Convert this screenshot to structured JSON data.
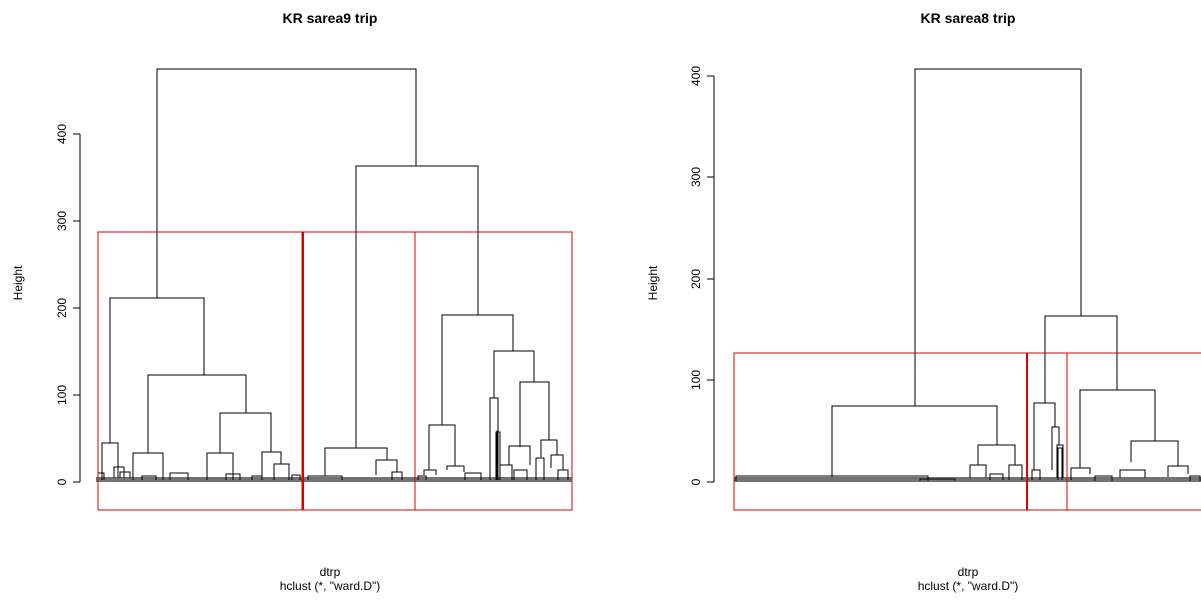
{
  "chart_data": [
    {
      "type": "dendrogram",
      "title": "KR sarea9  trip",
      "xlabel": "dtrp",
      "subtitle": "hclust (*, \"ward.D\")",
      "ylabel": "Height",
      "ylim": [
        -33,
        480
      ],
      "yticks": [
        0,
        100,
        200,
        300,
        400
      ],
      "grid": false,
      "clusters_highlighted": 3,
      "cut_height": 287,
      "major_merges": [
        {
          "height": 473,
          "members": "all"
        },
        {
          "height": 361,
          "members": "clusters 2 and 3"
        },
        {
          "height": 212,
          "members": "cluster 1"
        },
        {
          "height": 191,
          "members": "cluster 3"
        },
        {
          "height": 38,
          "members": "cluster 2"
        }
      ]
    },
    {
      "type": "dendrogram",
      "title": "KR sarea8  trip",
      "xlabel": "dtrp",
      "subtitle": "hclust (*, \"ward.D\")",
      "ylabel": "Height",
      "ylim": [
        -28,
        410
      ],
      "yticks": [
        0,
        100,
        200,
        300,
        400
      ],
      "grid": false,
      "clusters_highlighted": 3,
      "cut_height": 127,
      "major_merges": [
        {
          "height": 408,
          "members": "all"
        },
        {
          "height": 164,
          "members": "clusters 2 and 3"
        },
        {
          "height": 75,
          "members": "cluster 1"
        },
        {
          "height": 90,
          "members": "cluster 3"
        }
      ]
    }
  ]
}
